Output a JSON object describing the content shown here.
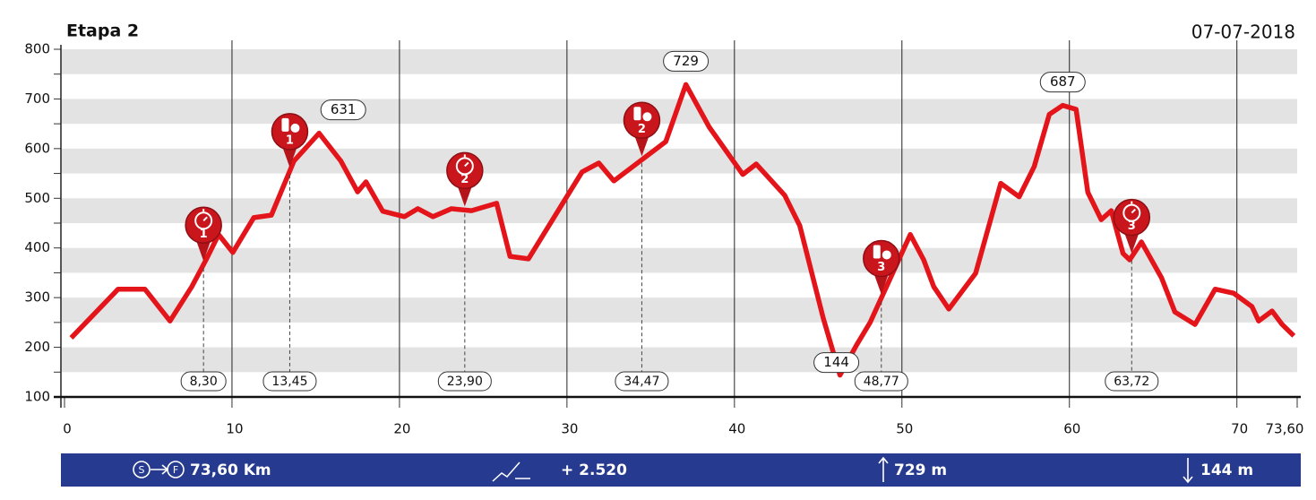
{
  "chart_data": {
    "type": "line",
    "title": "Etapa 2",
    "date": "07-07-2018",
    "color": "#e3151b",
    "x": [
      0.4,
      3.2,
      4.8,
      6.3,
      7.6,
      8.45,
      9.2,
      10.05,
      11.3,
      12.35,
      13.7,
      15.2,
      16.5,
      17.5,
      18.0,
      19.0,
      20.3,
      21.1,
      22.0,
      23.1,
      24.3,
      25.8,
      26.6,
      27.7,
      30.9,
      31.9,
      32.8,
      35.9,
      37.1,
      38.5,
      40.5,
      41.3,
      43.0,
      43.9,
      45.3,
      46.3,
      47.3,
      48.1,
      50.5,
      51.3,
      51.9,
      52.8,
      54.4,
      55.9,
      57.0,
      57.9,
      58.8,
      59.6,
      60.4,
      61.1,
      61.9,
      62.5,
      63.2,
      63.6,
      64.3,
      65.5,
      66.3,
      67.5,
      68.7,
      69.8,
      70.9,
      71.3,
      72.1,
      72.7,
      73.4
    ],
    "values": [
      219,
      317,
      317,
      253,
      322,
      376,
      427,
      391,
      461,
      466,
      575,
      631,
      575,
      513,
      533,
      474,
      463,
      479,
      463,
      479,
      475,
      490,
      383,
      378,
      553,
      571,
      535,
      614,
      729,
      643,
      548,
      569,
      506,
      445,
      259,
      144,
      205,
      250,
      427,
      376,
      322,
      277,
      349,
      530,
      503,
      564,
      669,
      687,
      679,
      512,
      457,
      475,
      389,
      376,
      412,
      340,
      271,
      246,
      317,
      309,
      282,
      253,
      273,
      246,
      223
    ],
    "peak_labels": [
      {
        "x": 15.2,
        "value": 631
      },
      {
        "x": 37.1,
        "value": 729
      },
      {
        "x": 46.3,
        "value": 144
      },
      {
        "x": 59.6,
        "value": 687
      }
    ],
    "markers": [
      {
        "km": 8.3,
        "label": "8,30",
        "icon": "timer",
        "number": "1"
      },
      {
        "km": 13.45,
        "label": "13,45",
        "icon": "food",
        "number": "1"
      },
      {
        "km": 23.9,
        "label": "23,90",
        "icon": "timer",
        "number": "2"
      },
      {
        "km": 34.47,
        "label": "34,47",
        "icon": "food",
        "number": "2"
      },
      {
        "km": 48.77,
        "label": "48,77",
        "icon": "food",
        "number": "3"
      },
      {
        "km": 63.72,
        "label": "63,72",
        "icon": "timer",
        "number": "3"
      }
    ],
    "xlim": [
      0,
      73.6
    ],
    "xticks": [
      0,
      10,
      20,
      30,
      40,
      50,
      60,
      70,
      {
        "value": 73.6,
        "label": "73,60"
      }
    ],
    "ylim": [
      100,
      800
    ],
    "yticks": [
      100,
      200,
      300,
      400,
      500,
      600,
      700,
      800
    ],
    "grid": true,
    "footer": {
      "distance": "73,60 Km",
      "climb": "+ 2.520",
      "max": "729 m",
      "min": "144 m"
    }
  }
}
